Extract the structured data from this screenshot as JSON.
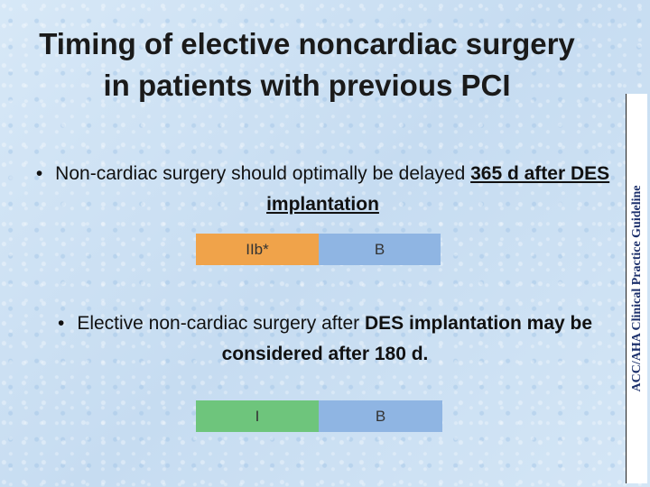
{
  "title": {
    "line1": "Timing of elective noncardiac surgery",
    "line2": "in patients with previous PCI"
  },
  "bullets": [
    {
      "text_plain": "Non-cardiac surgery should optimally be delayed",
      "text_bold": "365 d after DES implantation"
    },
    {
      "text_plain": "Elective non-cardiac surgery after",
      "text_bold": "DES implantation may be considered after 180 d."
    }
  ],
  "recommendations": [
    {
      "class_label": "IIb*",
      "level_label": "B",
      "class_color": "#f0a34a",
      "level_color": "#8fb5e3"
    },
    {
      "class_label": "I",
      "level_label": "B",
      "class_color": "#6ec57c",
      "level_color": "#8fb5e3"
    }
  ],
  "sidebar": {
    "text": "ACC/AHA Clinical Practice Guideline"
  }
}
